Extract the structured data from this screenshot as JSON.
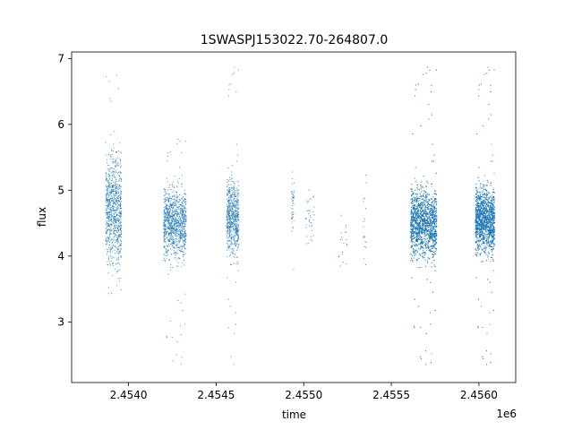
{
  "chart_data": {
    "type": "scatter",
    "title": "1SWASPJ153022.70-264807.0",
    "xlabel": "time",
    "ylabel": "flux",
    "x_offset_label": "1e6",
    "x_scale": 1000000,
    "xlim": [
      2453675,
      2456210
    ],
    "ylim": [
      2.08,
      7.1
    ],
    "xticks": [
      2454000,
      2454500,
      2455000,
      2455500,
      2456000
    ],
    "xtick_labels": [
      "2.4540",
      "2.4545",
      "2.4550",
      "2.4555",
      "2.4560"
    ],
    "yticks": [
      3,
      4,
      5,
      6,
      7
    ],
    "ytick_labels": [
      "3",
      "4",
      "5",
      "6",
      "7"
    ],
    "grid": false,
    "marker_color": "#1f77b4",
    "segments": [
      {
        "x_start": 2453870,
        "x_end": 2453960,
        "y_center": 4.7,
        "y_spread": 0.55,
        "y_min": 3.3,
        "y_max": 6.9,
        "n": 900
      },
      {
        "x_start": 2454200,
        "x_end": 2454330,
        "y_center": 4.5,
        "y_spread": 0.35,
        "y_min": 2.3,
        "y_max": 5.8,
        "n": 1100
      },
      {
        "x_start": 2454560,
        "x_end": 2454630,
        "y_center": 4.6,
        "y_spread": 0.38,
        "y_min": 2.3,
        "y_max": 6.9,
        "n": 700
      },
      {
        "x_start": 2454930,
        "x_end": 2454945,
        "y_center": 4.8,
        "y_spread": 0.3,
        "y_min": 3.7,
        "y_max": 5.7,
        "n": 50
      },
      {
        "x_start": 2455010,
        "x_end": 2455060,
        "y_center": 4.6,
        "y_spread": 0.3,
        "y_min": 3.5,
        "y_max": 5.3,
        "n": 40
      },
      {
        "x_start": 2455200,
        "x_end": 2455250,
        "y_center": 4.3,
        "y_spread": 0.3,
        "y_min": 3.8,
        "y_max": 5.0,
        "n": 20
      },
      {
        "x_start": 2455340,
        "x_end": 2455360,
        "y_center": 4.4,
        "y_spread": 0.45,
        "y_min": 3.4,
        "y_max": 5.5,
        "n": 20
      },
      {
        "x_start": 2455610,
        "x_end": 2455760,
        "y_center": 4.5,
        "y_spread": 0.35,
        "y_min": 2.3,
        "y_max": 6.9,
        "n": 2600
      },
      {
        "x_start": 2455980,
        "x_end": 2456090,
        "y_center": 4.55,
        "y_spread": 0.33,
        "y_min": 2.3,
        "y_max": 6.9,
        "n": 2400
      }
    ]
  }
}
